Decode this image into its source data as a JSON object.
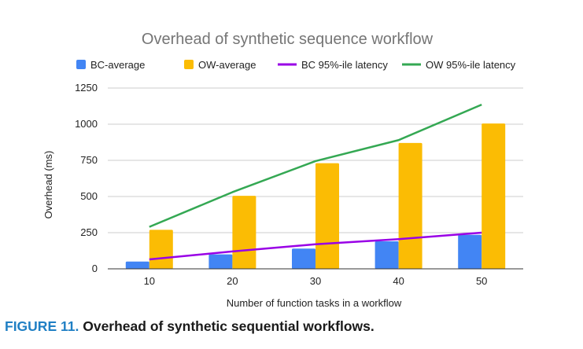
{
  "chart_data": {
    "type": "bar",
    "title": "Overhead of synthetic sequence workflow",
    "xlabel": "Number of function tasks in a workflow",
    "ylabel": "Overhead (ms)",
    "categories": [
      "10",
      "20",
      "30",
      "40",
      "50"
    ],
    "ylim": [
      0,
      1250
    ],
    "yticks": [
      "0",
      "250",
      "500",
      "750",
      "1000",
      "1250"
    ],
    "grid": true,
    "legend_position": "top",
    "series": [
      {
        "name": "BC-average",
        "kind": "bar",
        "color": "#4285f4",
        "values": [
          50,
          100,
          140,
          190,
          235
        ]
      },
      {
        "name": "OW-average",
        "kind": "bar",
        "color": "#fbbc04",
        "values": [
          270,
          505,
          730,
          870,
          1005
        ]
      },
      {
        "name": "BC 95%-ile latency",
        "kind": "line",
        "color": "#9900e6",
        "values": [
          65,
          120,
          170,
          205,
          250
        ]
      },
      {
        "name": "OW 95%-ile latency",
        "kind": "line",
        "color": "#34a853",
        "values": [
          290,
          530,
          745,
          890,
          1135
        ]
      }
    ]
  },
  "caption": {
    "label": "FIGURE 11.",
    "text": "Overhead of synthetic sequential workflows."
  }
}
